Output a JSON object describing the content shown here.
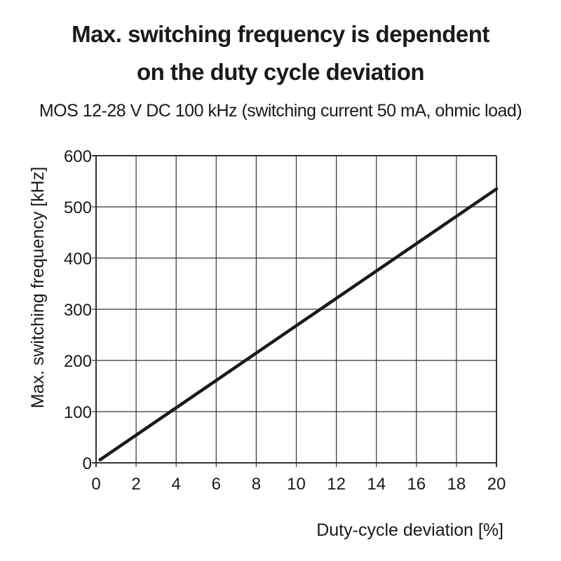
{
  "chart_data": {
    "type": "line",
    "title_line1": "Max. switching frequency is dependent",
    "title_line2": "on the duty cycle deviation",
    "subtitle": "MOS 12-28 V DC 100 kHz (switching current 50 mA, ohmic load)",
    "xlabel": "Duty-cycle deviation [%]",
    "ylabel": "Max. switching frequency [kHz]",
    "xlim": [
      0,
      20
    ],
    "ylim": [
      0,
      600
    ],
    "x_ticks": [
      0,
      2,
      4,
      6,
      8,
      10,
      12,
      14,
      16,
      18,
      20
    ],
    "y_ticks": [
      0,
      100,
      200,
      300,
      400,
      500,
      600
    ],
    "grid": true,
    "series": [
      {
        "x": [
          0.2,
          20
        ],
        "y": [
          6,
          535
        ]
      }
    ],
    "colors": {
      "line": "#1a1a1a",
      "grid": "#333333"
    }
  }
}
